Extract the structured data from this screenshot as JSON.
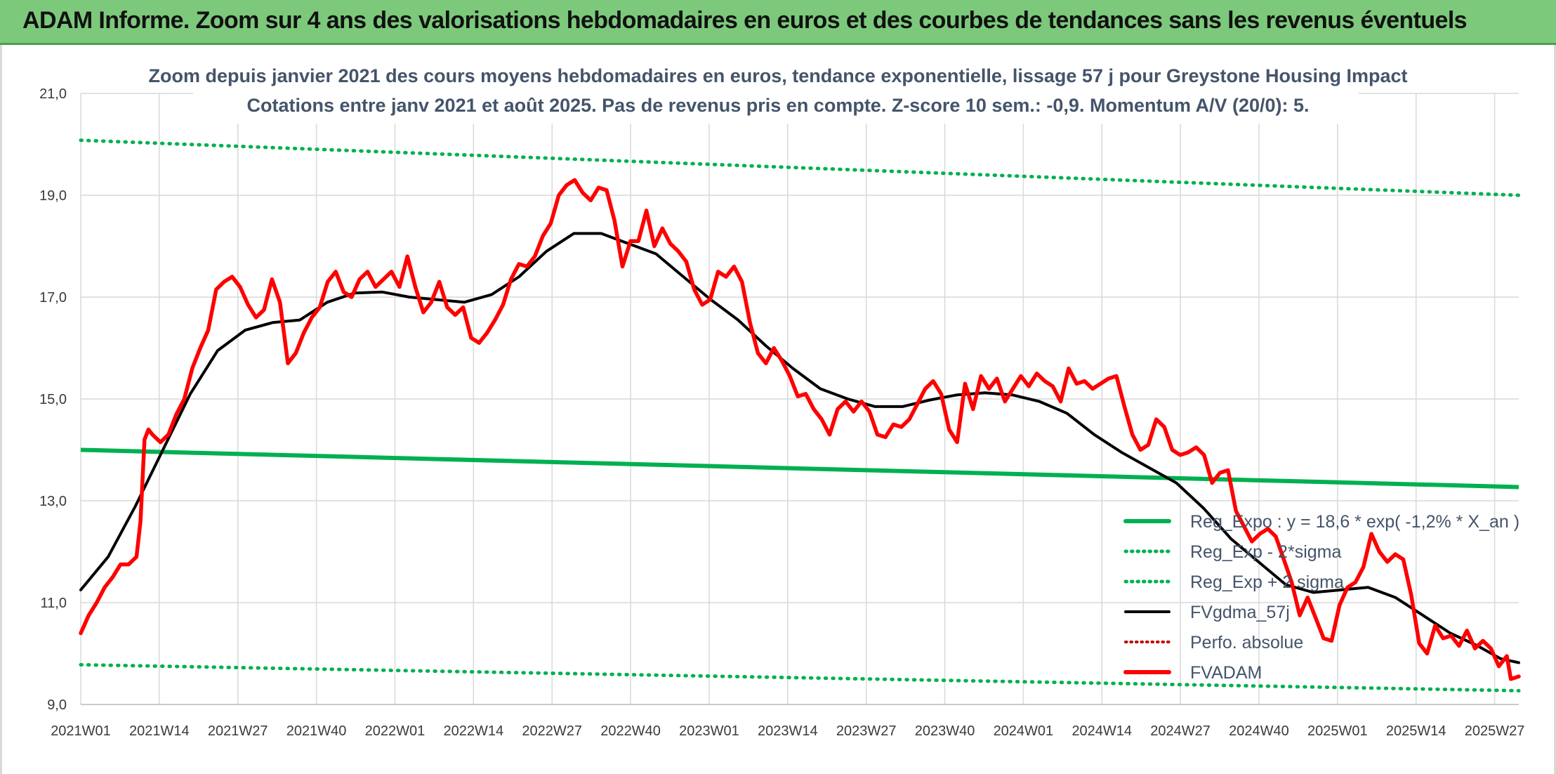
{
  "banner": {
    "title": "ADAM Informe. Zoom sur 4 ans des valorisations hebdomadaires en euros et des courbes de tendances sans les revenus éventuels"
  },
  "colors": {
    "banner_bg": "#7cc97b",
    "trend_green": "#00b050",
    "band_green": "#00b050",
    "smooth_black": "#000000",
    "price_red": "#ff0000",
    "perfo_red": "#c00000"
  },
  "chart_data": {
    "type": "line",
    "title_lines": [
      "Zoom depuis janvier 2021 des cours moyens hebdomadaires en euros, tendance exponentielle, lissage 57 j pour Greystone Housing Impact",
      "Cotations entre janv 2021 et août 2025. Pas de revenus pris en compte. Z-score 10 sem.: -0,9. Momentum A/V (20/0): 5."
    ],
    "xlabel": "",
    "ylabel": "",
    "ylim": [
      9,
      21
    ],
    "y_ticks": [
      "9,0",
      "11,0",
      "13,0",
      "15,0",
      "17,0",
      "19,0",
      "21,0"
    ],
    "x_ticks": [
      "2021W01",
      "2021W14",
      "2021W27",
      "2021W40",
      "2022W01",
      "2022W14",
      "2022W27",
      "2022W40",
      "2023W01",
      "2023W14",
      "2023W27",
      "2023W40",
      "2024W01",
      "2024W14",
      "2024W27",
      "2024W40",
      "2025W01",
      "2025W14",
      "2025W27"
    ],
    "weeks_count": 239,
    "grid": true,
    "legend_position": "bottom-right",
    "series": [
      {
        "name": "Reg_Expo : y = 18,6 * exp( -1,2% *  X_an )",
        "style": "solid-thick",
        "color": "#00b050",
        "start": 14.0,
        "end": 13.27
      },
      {
        "name": "Reg_Exp - 2*sigma",
        "style": "dotted",
        "color": "#00b050",
        "start": 9.78,
        "end": 9.27
      },
      {
        "name": "Reg_Exp + 2 sigma",
        "style": "dotted",
        "color": "#00b050",
        "start": 20.08,
        "end": 19.0
      },
      {
        "name": "FVgdma_57j",
        "style": "solid",
        "color": "#000000",
        "points": [
          [
            0,
            11.25
          ],
          [
            6,
            11.9
          ],
          [
            12,
            12.9
          ],
          [
            18,
            14.0
          ],
          [
            24,
            15.1
          ],
          [
            30,
            15.95
          ],
          [
            36,
            16.35
          ],
          [
            42,
            16.5
          ],
          [
            48,
            16.55
          ],
          [
            54,
            16.9
          ],
          [
            60,
            17.08
          ],
          [
            66,
            17.1
          ],
          [
            72,
            17.0
          ],
          [
            78,
            16.95
          ],
          [
            84,
            16.9
          ],
          [
            90,
            17.05
          ],
          [
            96,
            17.4
          ],
          [
            102,
            17.9
          ],
          [
            108,
            18.25
          ],
          [
            114,
            18.25
          ],
          [
            120,
            18.05
          ],
          [
            126,
            17.85
          ],
          [
            132,
            17.4
          ],
          [
            138,
            16.95
          ],
          [
            144,
            16.55
          ],
          [
            150,
            16.05
          ],
          [
            156,
            15.6
          ],
          [
            162,
            15.2
          ],
          [
            168,
            15.0
          ],
          [
            174,
            14.85
          ],
          [
            180,
            14.85
          ],
          [
            186,
            14.98
          ],
          [
            192,
            15.08
          ],
          [
            198,
            15.12
          ],
          [
            204,
            15.08
          ],
          [
            210,
            14.95
          ],
          [
            216,
            14.72
          ],
          [
            222,
            14.3
          ],
          [
            228,
            13.95
          ],
          [
            234,
            13.65
          ],
          [
            240,
            13.35
          ],
          [
            246,
            12.85
          ],
          [
            252,
            12.25
          ],
          [
            258,
            11.8
          ],
          [
            264,
            11.35
          ],
          [
            270,
            11.2
          ],
          [
            276,
            11.25
          ],
          [
            282,
            11.3
          ],
          [
            288,
            11.1
          ],
          [
            294,
            10.75
          ],
          [
            300,
            10.4
          ],
          [
            306,
            10.15
          ],
          [
            311,
            9.9
          ],
          [
            315,
            9.82
          ]
        ]
      },
      {
        "name": "Perfo. absolue",
        "style": "dotted",
        "color": "#c00000",
        "hidden": true
      },
      {
        "name": "FVADAM",
        "style": "solid-thick",
        "color": "#ff0000",
        "points": [
          [
            0,
            10.4
          ],
          [
            2,
            10.75
          ],
          [
            4,
            11.0
          ],
          [
            6,
            11.3
          ],
          [
            8,
            11.5
          ],
          [
            10,
            11.75
          ],
          [
            12,
            11.75
          ],
          [
            14,
            11.9
          ],
          [
            15,
            12.6
          ],
          [
            16,
            14.2
          ],
          [
            17,
            14.4
          ],
          [
            18,
            14.3
          ],
          [
            20,
            14.15
          ],
          [
            22,
            14.3
          ],
          [
            24,
            14.7
          ],
          [
            26,
            15.0
          ],
          [
            28,
            15.6
          ],
          [
            30,
            16.0
          ],
          [
            32,
            16.35
          ],
          [
            34,
            17.15
          ],
          [
            36,
            17.3
          ],
          [
            38,
            17.4
          ],
          [
            40,
            17.2
          ],
          [
            42,
            16.85
          ],
          [
            44,
            16.6
          ],
          [
            46,
            16.75
          ],
          [
            48,
            17.35
          ],
          [
            50,
            16.9
          ],
          [
            52,
            15.7
          ],
          [
            54,
            15.9
          ],
          [
            56,
            16.3
          ],
          [
            58,
            16.6
          ],
          [
            60,
            16.8
          ],
          [
            62,
            17.3
          ],
          [
            64,
            17.5
          ],
          [
            66,
            17.1
          ],
          [
            68,
            17.0
          ],
          [
            70,
            17.35
          ],
          [
            72,
            17.5
          ],
          [
            74,
            17.2
          ],
          [
            76,
            17.35
          ],
          [
            78,
            17.5
          ],
          [
            80,
            17.2
          ],
          [
            82,
            17.8
          ],
          [
            84,
            17.2
          ],
          [
            86,
            16.7
          ],
          [
            88,
            16.9
          ],
          [
            90,
            17.3
          ],
          [
            92,
            16.8
          ],
          [
            94,
            16.65
          ],
          [
            96,
            16.8
          ],
          [
            98,
            16.2
          ],
          [
            100,
            16.1
          ],
          [
            102,
            16.3
          ],
          [
            104,
            16.55
          ],
          [
            106,
            16.85
          ],
          [
            108,
            17.35
          ],
          [
            110,
            17.65
          ],
          [
            112,
            17.6
          ],
          [
            114,
            17.8
          ],
          [
            116,
            18.2
          ],
          [
            118,
            18.45
          ],
          [
            120,
            19.0
          ],
          [
            122,
            19.2
          ],
          [
            124,
            19.3
          ],
          [
            126,
            19.05
          ],
          [
            128,
            18.9
          ],
          [
            130,
            19.15
          ],
          [
            132,
            19.1
          ],
          [
            134,
            18.5
          ],
          [
            136,
            17.6
          ],
          [
            138,
            18.1
          ],
          [
            140,
            18.1
          ],
          [
            142,
            18.7
          ],
          [
            144,
            18.0
          ],
          [
            146,
            18.35
          ],
          [
            148,
            18.05
          ],
          [
            150,
            17.9
          ],
          [
            152,
            17.7
          ],
          [
            154,
            17.15
          ],
          [
            156,
            16.85
          ],
          [
            158,
            16.95
          ],
          [
            160,
            17.5
          ],
          [
            162,
            17.4
          ],
          [
            164,
            17.6
          ],
          [
            166,
            17.3
          ],
          [
            168,
            16.5
          ],
          [
            170,
            15.9
          ],
          [
            172,
            15.7
          ],
          [
            174,
            16.0
          ],
          [
            176,
            15.75
          ],
          [
            178,
            15.45
          ],
          [
            180,
            15.05
          ],
          [
            182,
            15.1
          ],
          [
            184,
            14.8
          ],
          [
            186,
            14.6
          ],
          [
            188,
            14.3
          ],
          [
            190,
            14.8
          ],
          [
            192,
            14.95
          ],
          [
            194,
            14.75
          ],
          [
            196,
            14.95
          ],
          [
            198,
            14.75
          ],
          [
            200,
            14.3
          ],
          [
            202,
            14.25
          ],
          [
            204,
            14.5
          ],
          [
            206,
            14.45
          ],
          [
            208,
            14.6
          ],
          [
            210,
            14.9
          ],
          [
            212,
            15.2
          ],
          [
            214,
            15.35
          ],
          [
            216,
            15.1
          ],
          [
            218,
            14.4
          ],
          [
            220,
            14.15
          ],
          [
            222,
            15.3
          ],
          [
            224,
            14.8
          ],
          [
            226,
            15.45
          ],
          [
            228,
            15.2
          ],
          [
            230,
            15.4
          ],
          [
            232,
            14.95
          ],
          [
            234,
            15.2
          ],
          [
            236,
            15.45
          ],
          [
            238,
            15.25
          ],
          [
            240,
            15.5
          ],
          [
            242,
            15.35
          ],
          [
            244,
            15.25
          ],
          [
            246,
            14.95
          ],
          [
            248,
            15.6
          ],
          [
            250,
            15.3
          ],
          [
            252,
            15.35
          ],
          [
            254,
            15.2
          ],
          [
            256,
            15.3
          ],
          [
            258,
            15.4
          ],
          [
            260,
            15.45
          ],
          [
            262,
            14.85
          ],
          [
            264,
            14.3
          ],
          [
            266,
            14.0
          ],
          [
            268,
            14.1
          ],
          [
            270,
            14.6
          ],
          [
            272,
            14.45
          ],
          [
            274,
            14.0
          ],
          [
            276,
            13.9
          ],
          [
            278,
            13.95
          ],
          [
            280,
            14.05
          ],
          [
            282,
            13.9
          ],
          [
            284,
            13.35
          ],
          [
            286,
            13.55
          ],
          [
            288,
            13.6
          ],
          [
            290,
            12.8
          ],
          [
            292,
            12.5
          ],
          [
            294,
            12.2
          ],
          [
            296,
            12.35
          ],
          [
            298,
            12.45
          ],
          [
            300,
            12.3
          ],
          [
            302,
            11.85
          ],
          [
            304,
            11.4
          ],
          [
            306,
            10.75
          ],
          [
            308,
            11.1
          ],
          [
            310,
            10.7
          ],
          [
            312,
            10.3
          ],
          [
            314,
            10.25
          ],
          [
            316,
            10.95
          ],
          [
            318,
            11.3
          ],
          [
            320,
            11.4
          ],
          [
            322,
            11.7
          ],
          [
            324,
            12.35
          ],
          [
            326,
            12.0
          ],
          [
            328,
            11.8
          ],
          [
            330,
            11.95
          ],
          [
            332,
            11.85
          ],
          [
            334,
            11.15
          ],
          [
            336,
            10.2
          ],
          [
            338,
            10.0
          ],
          [
            340,
            10.55
          ],
          [
            342,
            10.3
          ],
          [
            344,
            10.35
          ],
          [
            346,
            10.15
          ],
          [
            348,
            10.45
          ],
          [
            350,
            10.1
          ],
          [
            352,
            10.25
          ],
          [
            354,
            10.1
          ],
          [
            356,
            9.75
          ],
          [
            358,
            9.95
          ],
          [
            359,
            9.5
          ],
          [
            361,
            9.55
          ]
        ]
      }
    ]
  }
}
